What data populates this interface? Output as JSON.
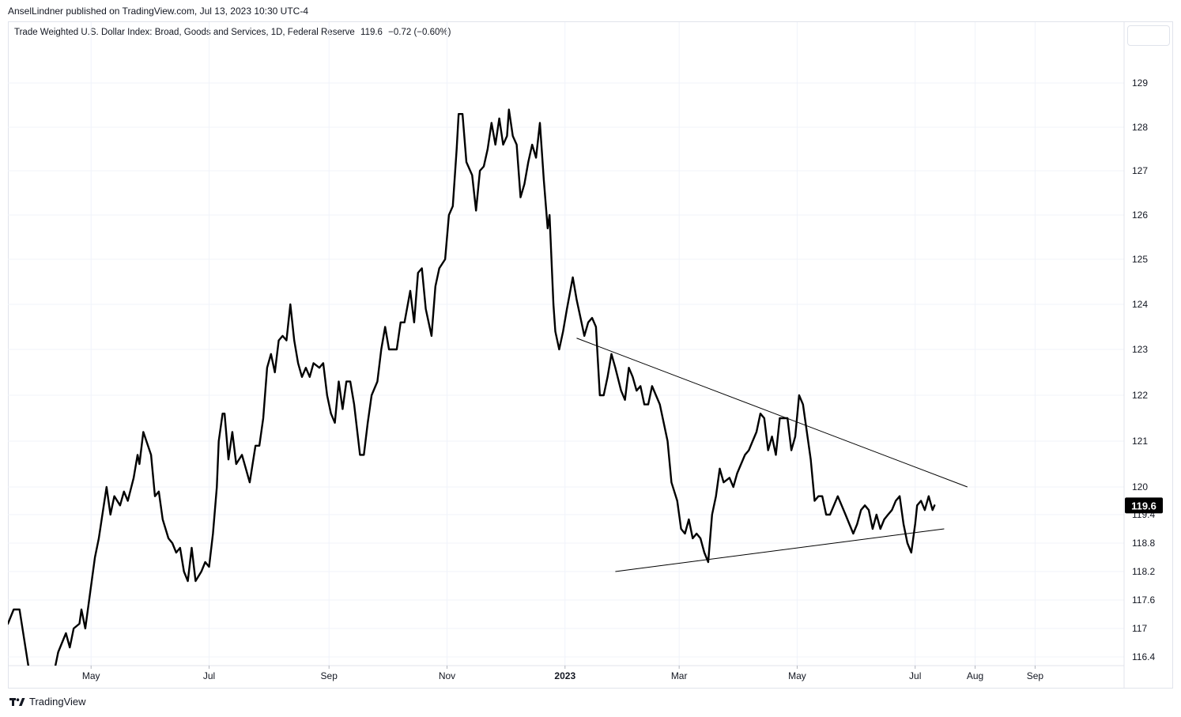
{
  "header": {
    "publisher": "AnselLindner published on TradingView.com, Jul 13, 2023 10:30 UTC-4"
  },
  "legend": {
    "name": "Trade Weighted U.S. Dollar Index: Broad, Goods and Services, 1D, Federal Reserve",
    "last": "119.6",
    "change": "−0.72 (−0.60%)"
  },
  "footer": {
    "brand": "TradingView",
    "icon": "tradingview-logo-icon"
  },
  "colors": {
    "line": "#000000",
    "grid": "#f0f3fa",
    "axis_text": "#131722",
    "price_label_bg": "#000000",
    "price_label_text": "#ffffff"
  },
  "chart_data": {
    "type": "line",
    "title": "Trade Weighted U.S. Dollar Index: Broad, Goods and Services",
    "xlabel": "",
    "ylabel": "",
    "grid": true,
    "legend_position": "top-left",
    "last_value": 119.6,
    "price_label": "119.6",
    "ylim": [
      116.2,
      129.9
    ],
    "xlim": [
      "2022-03-19",
      "2023-10-17"
    ],
    "y_ticks": [
      116.4,
      117,
      117.6,
      118.2,
      118.8,
      119.4,
      120,
      121,
      122,
      123,
      124,
      125,
      126,
      127,
      128,
      129
    ],
    "x_ticks": [
      {
        "label": "May",
        "date": "2022-05-01",
        "bold": false
      },
      {
        "label": "Jul",
        "date": "2022-07-01",
        "bold": false
      },
      {
        "label": "Sep",
        "date": "2022-09-01",
        "bold": false
      },
      {
        "label": "Nov",
        "date": "2022-11-01",
        "bold": false
      },
      {
        "label": "2023",
        "date": "2023-01-01",
        "bold": true
      },
      {
        "label": "Mar",
        "date": "2023-03-01",
        "bold": false
      },
      {
        "label": "May",
        "date": "2023-05-01",
        "bold": false
      },
      {
        "label": "Jul",
        "date": "2023-07-01",
        "bold": false
      },
      {
        "label": "Aug",
        "date": "2023-08-01",
        "bold": false
      },
      {
        "label": "Sep",
        "date": "2023-09-01",
        "bold": false
      }
    ],
    "series": [
      {
        "points": [
          [
            "2022-03-19",
            117.1
          ],
          [
            "2022-03-22",
            117.4
          ],
          [
            "2022-03-25",
            117.4
          ],
          [
            "2022-03-30",
            116.1
          ],
          [
            "2022-04-05",
            116.1
          ],
          [
            "2022-04-12",
            116.1
          ],
          [
            "2022-04-14",
            116.5
          ],
          [
            "2022-04-18",
            116.9
          ],
          [
            "2022-04-20",
            116.6
          ],
          [
            "2022-04-22",
            117.0
          ],
          [
            "2022-04-25",
            117.1
          ],
          [
            "2022-04-26",
            117.4
          ],
          [
            "2022-04-28",
            117.0
          ],
          [
            "2022-05-03",
            118.5
          ],
          [
            "2022-05-05",
            118.9
          ],
          [
            "2022-05-09",
            120.0
          ],
          [
            "2022-05-11",
            119.4
          ],
          [
            "2022-05-13",
            119.8
          ],
          [
            "2022-05-16",
            119.6
          ],
          [
            "2022-05-18",
            119.9
          ],
          [
            "2022-05-20",
            119.7
          ],
          [
            "2022-05-23",
            120.2
          ],
          [
            "2022-05-25",
            120.7
          ],
          [
            "2022-05-26",
            120.5
          ],
          [
            "2022-05-28",
            121.2
          ],
          [
            "2022-06-01",
            120.7
          ],
          [
            "2022-06-03",
            119.8
          ],
          [
            "2022-06-05",
            119.9
          ],
          [
            "2022-06-07",
            119.3
          ],
          [
            "2022-06-10",
            118.9
          ],
          [
            "2022-06-12",
            118.8
          ],
          [
            "2022-06-14",
            118.6
          ],
          [
            "2022-06-16",
            118.7
          ],
          [
            "2022-06-18",
            118.2
          ],
          [
            "2022-06-20",
            118.0
          ],
          [
            "2022-06-22",
            118.7
          ],
          [
            "2022-06-24",
            118.0
          ],
          [
            "2022-06-27",
            118.2
          ],
          [
            "2022-06-29",
            118.4
          ],
          [
            "2022-07-01",
            118.3
          ],
          [
            "2022-07-03",
            119.0
          ],
          [
            "2022-07-05",
            120.0
          ],
          [
            "2022-07-06",
            121.0
          ],
          [
            "2022-07-08",
            121.6
          ],
          [
            "2022-07-09",
            121.6
          ],
          [
            "2022-07-11",
            120.6
          ],
          [
            "2022-07-13",
            121.2
          ],
          [
            "2022-07-15",
            120.5
          ],
          [
            "2022-07-18",
            120.7
          ],
          [
            "2022-07-20",
            120.4
          ],
          [
            "2022-07-22",
            120.1
          ],
          [
            "2022-07-25",
            120.9
          ],
          [
            "2022-07-27",
            120.9
          ],
          [
            "2022-07-29",
            121.5
          ],
          [
            "2022-07-31",
            122.6
          ],
          [
            "2022-08-02",
            122.9
          ],
          [
            "2022-08-04",
            122.5
          ],
          [
            "2022-08-06",
            123.2
          ],
          [
            "2022-08-08",
            123.3
          ],
          [
            "2022-08-10",
            123.2
          ],
          [
            "2022-08-12",
            124.0
          ],
          [
            "2022-08-14",
            123.2
          ],
          [
            "2022-08-16",
            122.7
          ],
          [
            "2022-08-18",
            122.4
          ],
          [
            "2022-08-20",
            122.6
          ],
          [
            "2022-08-22",
            122.4
          ],
          [
            "2022-08-24",
            122.7
          ],
          [
            "2022-08-27",
            122.6
          ],
          [
            "2022-08-29",
            122.7
          ],
          [
            "2022-08-31",
            122.0
          ],
          [
            "2022-09-02",
            121.6
          ],
          [
            "2022-09-04",
            121.4
          ],
          [
            "2022-09-06",
            122.3
          ],
          [
            "2022-09-08",
            121.7
          ],
          [
            "2022-09-10",
            122.3
          ],
          [
            "2022-09-12",
            122.3
          ],
          [
            "2022-09-14",
            121.8
          ],
          [
            "2022-09-17",
            120.7
          ],
          [
            "2022-09-19",
            120.7
          ],
          [
            "2022-09-21",
            121.4
          ],
          [
            "2022-09-23",
            122.0
          ],
          [
            "2022-09-26",
            122.3
          ],
          [
            "2022-09-28",
            123.0
          ],
          [
            "2022-09-30",
            123.5
          ],
          [
            "2022-10-02",
            123.0
          ],
          [
            "2022-10-04",
            123.0
          ],
          [
            "2022-10-06",
            123.0
          ],
          [
            "2022-10-08",
            123.6
          ],
          [
            "2022-10-10",
            123.6
          ],
          [
            "2022-10-13",
            124.3
          ],
          [
            "2022-10-15",
            123.6
          ],
          [
            "2022-10-17",
            124.7
          ],
          [
            "2022-10-19",
            124.8
          ],
          [
            "2022-10-21",
            123.9
          ],
          [
            "2022-10-24",
            123.3
          ],
          [
            "2022-10-26",
            124.4
          ],
          [
            "2022-10-28",
            124.8
          ],
          [
            "2022-10-31",
            125.0
          ],
          [
            "2022-11-02",
            126.0
          ],
          [
            "2022-11-04",
            126.2
          ],
          [
            "2022-11-06",
            127.5
          ],
          [
            "2022-11-07",
            128.3
          ],
          [
            "2022-11-09",
            128.3
          ],
          [
            "2022-11-11",
            127.2
          ],
          [
            "2022-11-14",
            126.9
          ],
          [
            "2022-11-16",
            126.1
          ],
          [
            "2022-11-18",
            127.0
          ],
          [
            "2022-11-20",
            127.1
          ],
          [
            "2022-11-22",
            127.5
          ],
          [
            "2022-11-24",
            128.1
          ],
          [
            "2022-11-26",
            127.6
          ],
          [
            "2022-11-28",
            128.2
          ],
          [
            "2022-11-30",
            127.6
          ],
          [
            "2022-12-02",
            127.8
          ],
          [
            "2022-12-03",
            128.4
          ],
          [
            "2022-12-05",
            127.8
          ],
          [
            "2022-12-07",
            127.6
          ],
          [
            "2022-12-09",
            126.4
          ],
          [
            "2022-12-11",
            126.7
          ],
          [
            "2022-12-13",
            127.2
          ],
          [
            "2022-12-15",
            127.6
          ],
          [
            "2022-12-17",
            127.3
          ],
          [
            "2022-12-19",
            128.1
          ],
          [
            "2022-12-21",
            126.8
          ],
          [
            "2022-12-23",
            125.7
          ],
          [
            "2022-12-24",
            126.0
          ],
          [
            "2022-12-26",
            124.0
          ],
          [
            "2022-12-27",
            123.4
          ],
          [
            "2022-12-29",
            123.0
          ],
          [
            "2022-12-31",
            123.4
          ],
          [
            "2023-01-02",
            123.9
          ],
          [
            "2023-01-05",
            124.6
          ],
          [
            "2023-01-07",
            124.1
          ],
          [
            "2023-01-09",
            123.7
          ],
          [
            "2023-01-11",
            123.3
          ],
          [
            "2023-01-13",
            123.6
          ],
          [
            "2023-01-15",
            123.7
          ],
          [
            "2023-01-17",
            123.5
          ],
          [
            "2023-01-19",
            122.0
          ],
          [
            "2023-01-21",
            122.0
          ],
          [
            "2023-01-23",
            122.4
          ],
          [
            "2023-01-25",
            122.9
          ],
          [
            "2023-01-27",
            122.6
          ],
          [
            "2023-01-30",
            122.1
          ],
          [
            "2023-02-01",
            121.9
          ],
          [
            "2023-02-03",
            122.6
          ],
          [
            "2023-02-05",
            122.4
          ],
          [
            "2023-02-07",
            122.1
          ],
          [
            "2023-02-09",
            122.2
          ],
          [
            "2023-02-11",
            121.8
          ],
          [
            "2023-02-13",
            121.8
          ],
          [
            "2023-02-15",
            122.2
          ],
          [
            "2023-02-17",
            122.0
          ],
          [
            "2023-02-19",
            121.8
          ],
          [
            "2023-02-21",
            121.4
          ],
          [
            "2023-02-23",
            121.0
          ],
          [
            "2023-02-25",
            120.1
          ],
          [
            "2023-02-28",
            119.7
          ],
          [
            "2023-03-02",
            119.1
          ],
          [
            "2023-03-04",
            119.0
          ],
          [
            "2023-03-06",
            119.3
          ],
          [
            "2023-03-08",
            118.9
          ],
          [
            "2023-03-10",
            119.0
          ],
          [
            "2023-03-12",
            118.9
          ],
          [
            "2023-03-14",
            118.6
          ],
          [
            "2023-03-16",
            118.4
          ],
          [
            "2023-03-18",
            119.4
          ],
          [
            "2023-03-20",
            119.8
          ],
          [
            "2023-03-22",
            120.4
          ],
          [
            "2023-03-24",
            120.1
          ],
          [
            "2023-03-27",
            120.2
          ],
          [
            "2023-03-29",
            120.0
          ],
          [
            "2023-03-31",
            120.3
          ],
          [
            "2023-04-02",
            120.5
          ],
          [
            "2023-04-04",
            120.7
          ],
          [
            "2023-04-06",
            120.8
          ],
          [
            "2023-04-08",
            121.0
          ],
          [
            "2023-04-10",
            121.2
          ],
          [
            "2023-04-12",
            121.6
          ],
          [
            "2023-04-14",
            121.5
          ],
          [
            "2023-04-16",
            120.8
          ],
          [
            "2023-04-18",
            121.1
          ],
          [
            "2023-04-20",
            120.7
          ],
          [
            "2023-04-22",
            121.5
          ],
          [
            "2023-04-24",
            121.5
          ],
          [
            "2023-04-26",
            121.5
          ],
          [
            "2023-04-28",
            120.8
          ],
          [
            "2023-04-30",
            121.1
          ],
          [
            "2023-05-02",
            122.0
          ],
          [
            "2023-05-04",
            121.8
          ],
          [
            "2023-05-06",
            121.2
          ],
          [
            "2023-05-08",
            120.6
          ],
          [
            "2023-05-10",
            119.7
          ],
          [
            "2023-05-12",
            119.8
          ],
          [
            "2023-05-14",
            119.8
          ],
          [
            "2023-05-16",
            119.4
          ],
          [
            "2023-05-18",
            119.4
          ],
          [
            "2023-05-20",
            119.6
          ],
          [
            "2023-05-22",
            119.8
          ],
          [
            "2023-05-24",
            119.6
          ],
          [
            "2023-05-26",
            119.4
          ],
          [
            "2023-05-28",
            119.2
          ],
          [
            "2023-05-30",
            119.0
          ],
          [
            "2023-06-01",
            119.2
          ],
          [
            "2023-06-03",
            119.5
          ],
          [
            "2023-06-05",
            119.6
          ],
          [
            "2023-06-07",
            119.5
          ],
          [
            "2023-06-09",
            119.1
          ],
          [
            "2023-06-11",
            119.4
          ],
          [
            "2023-06-13",
            119.1
          ],
          [
            "2023-06-15",
            119.3
          ],
          [
            "2023-06-17",
            119.4
          ],
          [
            "2023-06-19",
            119.5
          ],
          [
            "2023-06-21",
            119.7
          ],
          [
            "2023-06-23",
            119.8
          ],
          [
            "2023-06-25",
            119.2
          ],
          [
            "2023-06-27",
            118.8
          ],
          [
            "2023-06-29",
            118.6
          ],
          [
            "2023-07-01",
            119.2
          ],
          [
            "2023-07-02",
            119.6
          ],
          [
            "2023-07-04",
            119.7
          ],
          [
            "2023-07-06",
            119.5
          ],
          [
            "2023-07-08",
            119.8
          ],
          [
            "2023-07-10",
            119.5
          ],
          [
            "2023-07-11",
            119.6
          ]
        ]
      }
    ],
    "trendlines": [
      {
        "role": "resistance",
        "start": [
          "2023-01-07",
          123.25
        ],
        "end": [
          "2023-07-28",
          120.0
        ]
      },
      {
        "role": "support",
        "start": [
          "2023-01-27",
          118.2
        ],
        "end": [
          "2023-07-16",
          119.1
        ]
      }
    ]
  }
}
